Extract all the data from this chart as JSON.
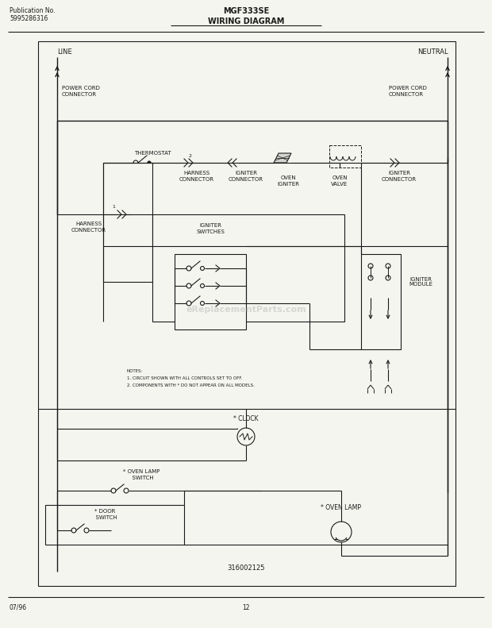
{
  "title": "MGF333SE",
  "subtitle": "WIRING DIAGRAM",
  "pub_no_line1": "Publication No.",
  "pub_no_line2": "5995286316",
  "part_no": "316002125",
  "date": "07/96",
  "page": "12",
  "bg_color": "#f5f5f0",
  "line_color": "#1a1a1a",
  "notes_line1": "NOTES:",
  "notes_line2": "1. CIRCUIT SHOWN WITH ALL CONTROLS SET TO OFF.",
  "notes_line3": "2. COMPONENTS WITH * DO NOT APPEAR ON ALL MODELS."
}
